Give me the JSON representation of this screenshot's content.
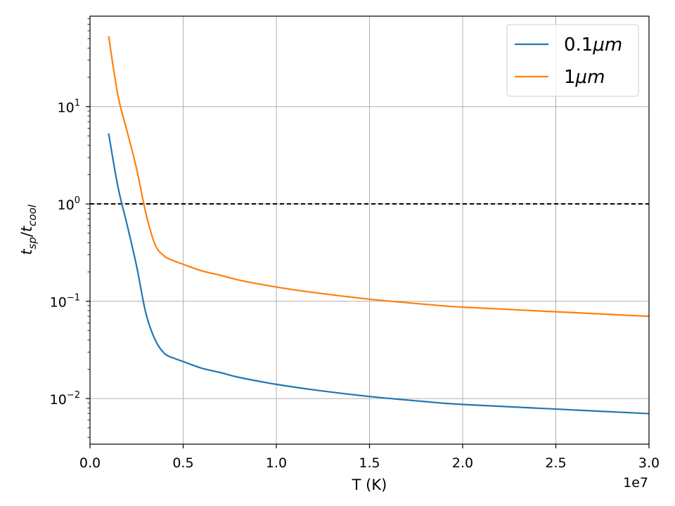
{
  "chart_data": {
    "type": "line",
    "xlabel": "T (K)",
    "ylabel": "t_sp/t_cool",
    "ylabel_parts": {
      "t1": "t",
      "s1": "sp",
      "slash": "/",
      "t2": "t",
      "s2": "cool"
    },
    "x_offset_label": "1e7",
    "x_tick_labels": [
      "0.0",
      "0.5",
      "1.0",
      "1.5",
      "2.0",
      "2.5",
      "3.0"
    ],
    "x_ticks": [
      0,
      5000000,
      10000000,
      15000000,
      20000000,
      25000000,
      30000000
    ],
    "xlim": [
      0,
      30000000
    ],
    "y_scale": "log",
    "ylim": [
      0.0034,
      85
    ],
    "y_ticks": [
      {
        "value": 0.01,
        "base": "10",
        "exp": "−2"
      },
      {
        "value": 0.1,
        "base": "10",
        "exp": "−1"
      },
      {
        "value": 1,
        "base": "10",
        "exp": "0"
      },
      {
        "value": 10,
        "base": "10",
        "exp": "1"
      }
    ],
    "grid": true,
    "legend_position": "top-right",
    "reference_line": {
      "y": 1,
      "style": "dashed",
      "color": "#000000"
    },
    "series": [
      {
        "name_parts": {
          "num": "0.1",
          "unit": "μm"
        },
        "color": "#1f77b4",
        "x": [
          1000000,
          1500000,
          2000000,
          2500000,
          3000000,
          3500000,
          4000000,
          4500000,
          5000000,
          6000000,
          7000000,
          8000000,
          10000000,
          12000000,
          15000000,
          18000000,
          20000000,
          25000000,
          30000000
        ],
        "y": [
          5.3,
          1.5,
          0.6,
          0.23,
          0.075,
          0.04,
          0.029,
          0.026,
          0.024,
          0.0205,
          0.0185,
          0.0165,
          0.014,
          0.0123,
          0.0105,
          0.0093,
          0.0087,
          0.0078,
          0.007
        ]
      },
      {
        "name_parts": {
          "num": "1",
          "unit": "μm"
        },
        "color": "#ff7f0e",
        "x": [
          1000000,
          1500000,
          2000000,
          2500000,
          3000000,
          3500000,
          4000000,
          4500000,
          5000000,
          6000000,
          7000000,
          8000000,
          10000000,
          12000000,
          15000000,
          18000000,
          20000000,
          25000000,
          30000000
        ],
        "y": [
          53,
          13,
          5.5,
          2.3,
          0.8,
          0.38,
          0.29,
          0.26,
          0.24,
          0.205,
          0.185,
          0.165,
          0.14,
          0.123,
          0.105,
          0.093,
          0.087,
          0.078,
          0.07
        ]
      }
    ]
  }
}
